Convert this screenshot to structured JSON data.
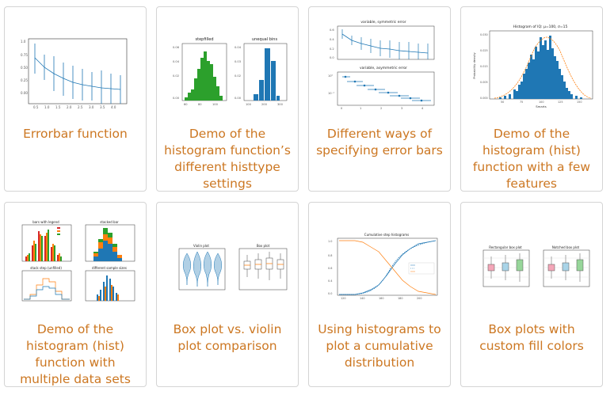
{
  "gallery": {
    "items": [
      {
        "caption": "Errorbar function"
      },
      {
        "caption": "Demo of the histogram function’s different histtype settings",
        "thumb": {
          "left_title": "stepfilled",
          "right_title": "unequal bins"
        }
      },
      {
        "caption": "Different ways of specifying error bars",
        "thumb": {
          "top_title": "variable, symmetric error",
          "bottom_title": "variable, asymmetric error"
        }
      },
      {
        "caption": "Demo of the histogram (hist) function with a few features",
        "thumb": {
          "title": "Histogram of IQ: μ=100, σ=15",
          "xlabel": "Smarts",
          "ylabel": "Probability density"
        }
      },
      {
        "caption": "Demo of the histogram (hist) function with multiple data sets",
        "thumb": {
          "t1": "bars with legend",
          "t2": "stacked bar",
          "t3": "stack step (unfilled)",
          "t4": "different sample sizes"
        }
      },
      {
        "caption": "Box plot vs. violin plot comparison",
        "thumb": {
          "left_title": "Violin plot",
          "right_title": "Box plot"
        }
      },
      {
        "caption": "Using histograms to plot a cumulative distribution",
        "thumb": {
          "title": "Cumulative step histograms"
        }
      },
      {
        "caption": "Box plots with custom fill colors",
        "thumb": {
          "left_title": "Rectangular box plot",
          "right_title": "Notched box plot"
        }
      }
    ]
  },
  "colors": {
    "caption": "#cc7722",
    "border": "#d4d4d4",
    "mpl_blue": "#1f77b4",
    "mpl_orange": "#ff7f0e",
    "mpl_green": "#2ca02c",
    "mpl_red": "#d62728"
  }
}
